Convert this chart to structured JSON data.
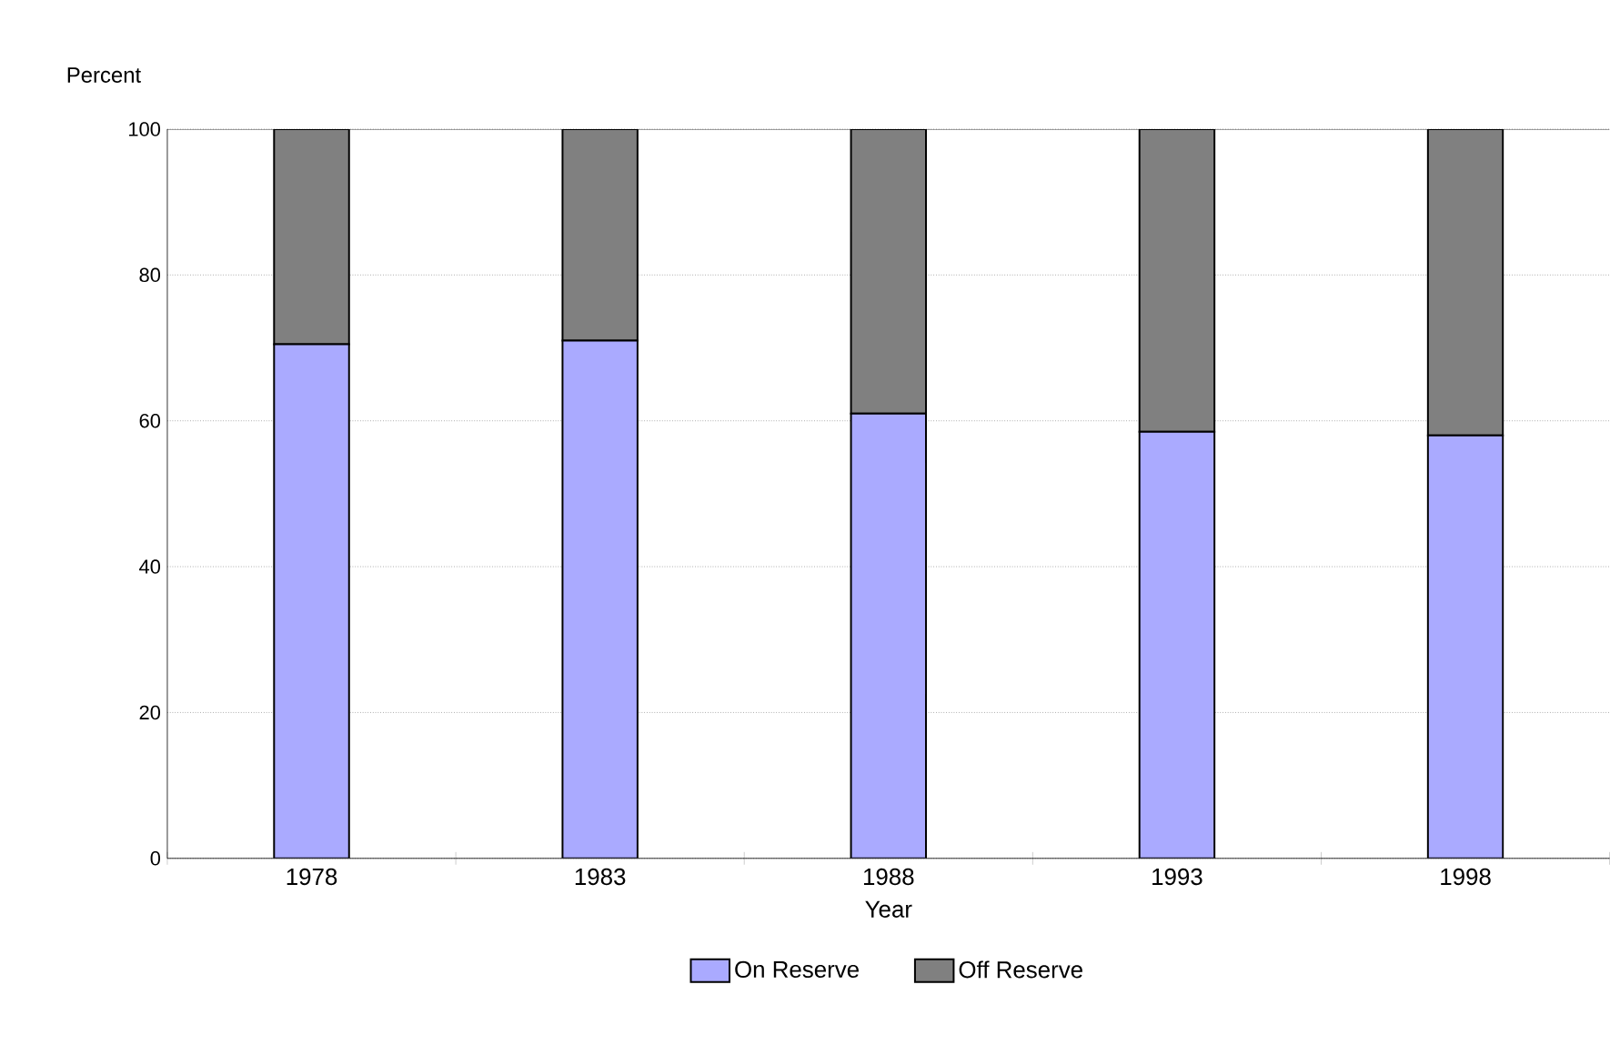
{
  "chart_data": {
    "type": "bar",
    "stacked": true,
    "xlabel": "Year",
    "ylabel": "Percent",
    "categories": [
      "1978",
      "1983",
      "1988",
      "1993",
      "1998"
    ],
    "series": [
      {
        "name": "On Reserve",
        "color": "#aaaaff",
        "values": [
          70.5,
          71,
          61,
          58.5,
          58
        ]
      },
      {
        "name": "Off Reserve",
        "color": "#808080",
        "values": [
          29.5,
          29,
          39,
          41.5,
          42
        ]
      }
    ],
    "ylim": [
      0,
      100
    ],
    "yticks": [
      0,
      20,
      40,
      60,
      80,
      100
    ],
    "grid": "y",
    "legend": "bottom"
  }
}
